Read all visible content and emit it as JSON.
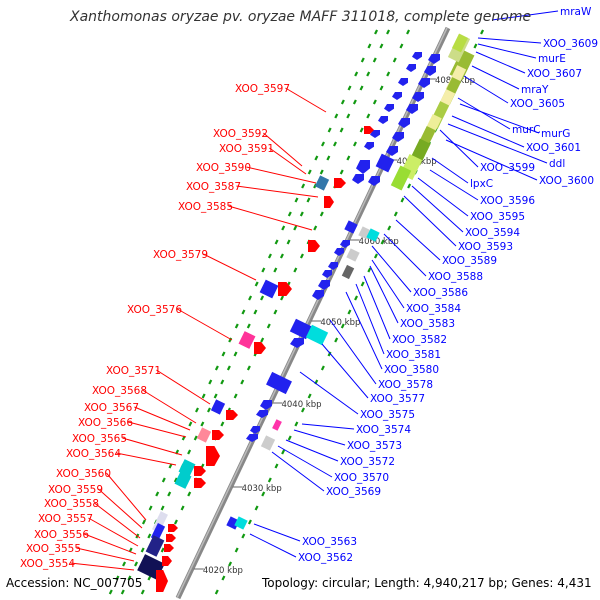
{
  "title": "Xanthomonas oryzae pv. oryzae MAFF 311018, complete genome",
  "accession": "Accession: NC_007705",
  "summary": "Topology: circular; Length: 4,940,217 bp; Genes: 4,431",
  "colors": {
    "left_label": "#ff0000",
    "right_label": "#0000ff",
    "backbone": "#7a7a7a",
    "tick_mark": "#009900"
  },
  "ticks": [
    {
      "label": "4080 kbp",
      "pos": 4080
    },
    {
      "label": "4070 kbp",
      "pos": 4070
    },
    {
      "label": "4060 kbp",
      "pos": 4060
    },
    {
      "label": "4050 kbp",
      "pos": 4050
    },
    {
      "label": "4040 kbp",
      "pos": 4040
    },
    {
      "label": "4030 kbp",
      "pos": 4030
    },
    {
      "label": "4020 kbp",
      "pos": 4020
    }
  ],
  "left_genes": [
    "XOO_3597",
    "XOO_3592",
    "XOO_3591",
    "XOO_3590",
    "XOO_3587",
    "XOO_3585",
    "XOO_3579",
    "XOO_3576",
    "XOO_3571",
    "XOO_3568",
    "XOO_3567",
    "XOO_3566",
    "XOO_3565",
    "XOO_3564",
    "XOO_3560",
    "XOO_3559",
    "XOO_3558",
    "XOO_3557",
    "XOO_3556",
    "XOO_3555",
    "XOO_3554"
  ],
  "right_genes": [
    "mraW",
    "XOO_3609",
    "murE",
    "XOO_3607",
    "mraY",
    "XOO_3605",
    "murC",
    "murG",
    "XOO_3601",
    "ddl",
    "XOO_3599",
    "XOO_3600",
    "lpxC",
    "XOO_3596",
    "XOO_3595",
    "XOO_3594",
    "XOO_3593",
    "XOO_3589",
    "XOO_3588",
    "XOO_3586",
    "XOO_3584",
    "XOO_3583",
    "XOO_3582",
    "XOO_3581",
    "XOO_3580",
    "XOO_3578",
    "XOO_3577",
    "XOO_3575",
    "XOO_3574",
    "XOO_3573",
    "XOO_3572",
    "XOO_3570",
    "XOO_3569",
    "XOO_3563",
    "XOO_3562"
  ]
}
